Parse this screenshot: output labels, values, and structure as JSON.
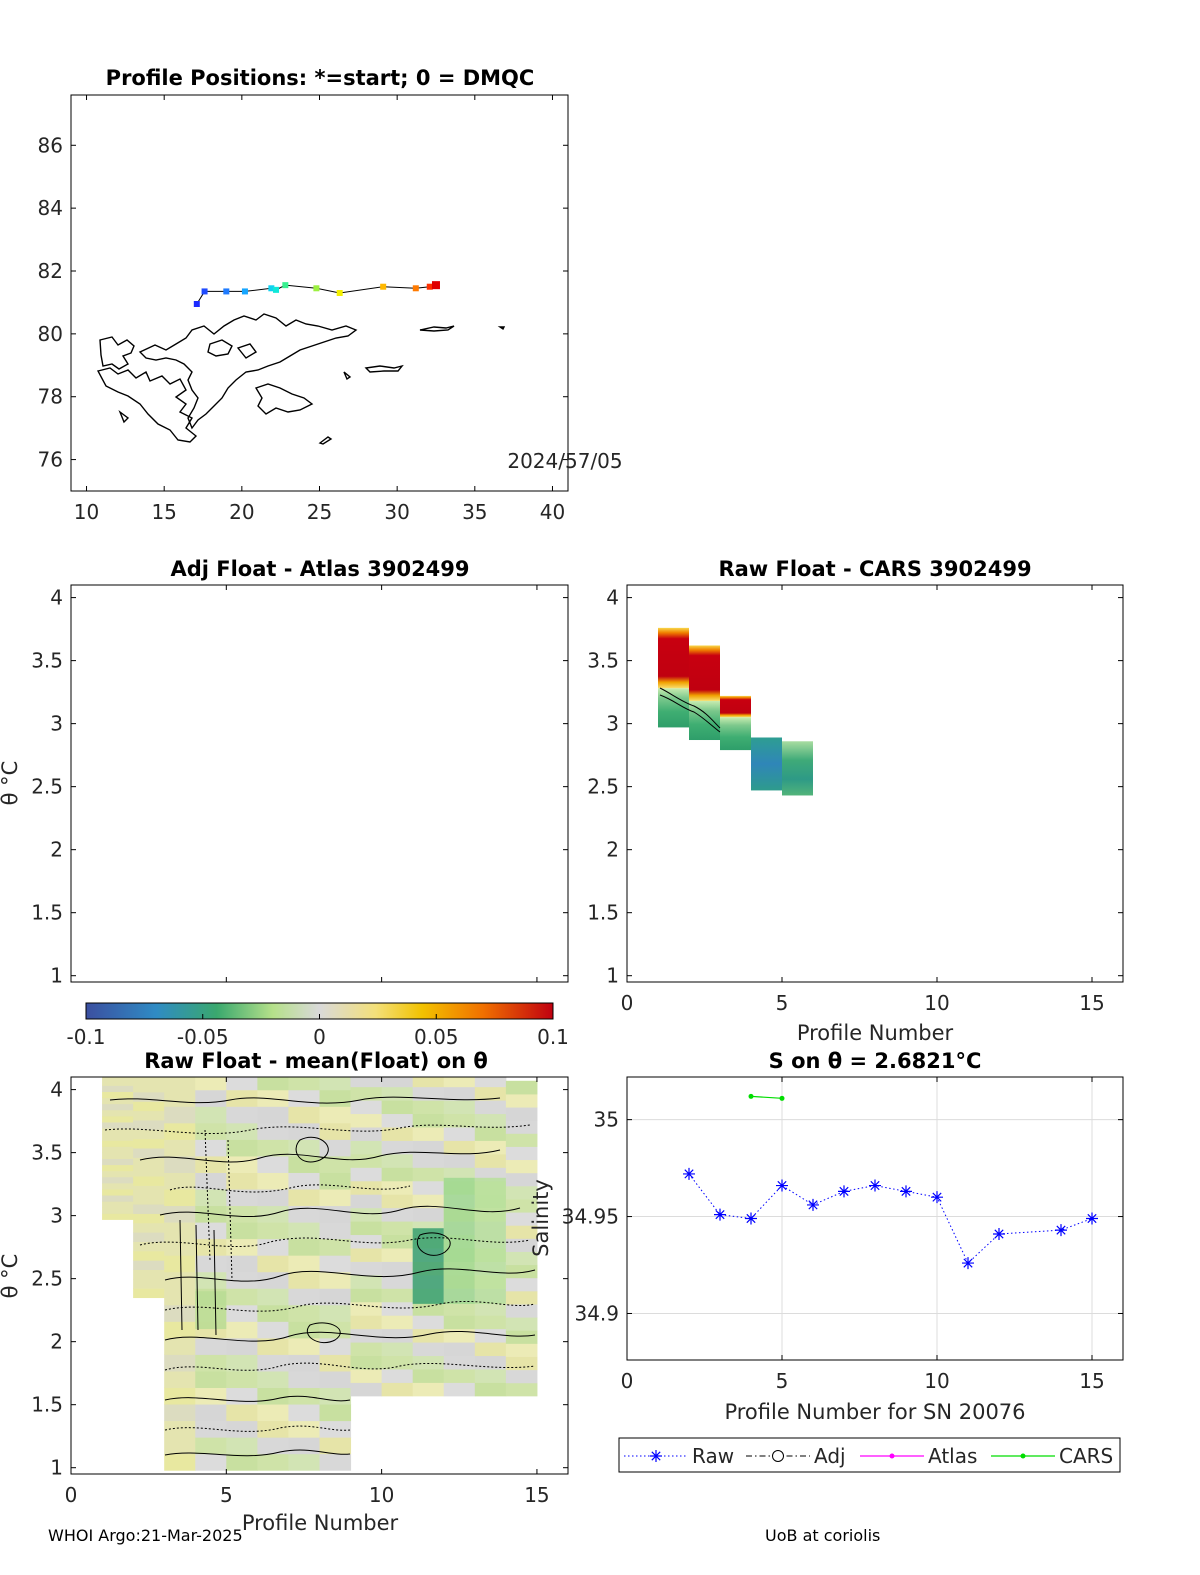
{
  "footer": {
    "left": "WHOI Argo:21-Mar-2025",
    "right": "UoB at coriolis"
  },
  "chart_data": [
    {
      "id": "map",
      "type": "scatter",
      "title": "Profile Positions: *=start; 0 = DMQC",
      "xlim": [
        9,
        41
      ],
      "ylim": [
        75,
        87.6
      ],
      "xticks": [
        10,
        15,
        20,
        25,
        30,
        35,
        40
      ],
      "yticks": [
        76,
        78,
        80,
        82,
        84,
        86
      ],
      "annotation": "2024/57/05",
      "points": [
        {
          "lon": 17.1,
          "lat": 80.95,
          "color": "#1c2bff"
        },
        {
          "lon": 17.6,
          "lat": 81.35,
          "color": "#1f4bff"
        },
        {
          "lon": 19.0,
          "lat": 81.35,
          "color": "#1f7bff"
        },
        {
          "lon": 20.2,
          "lat": 81.35,
          "color": "#16a6ff"
        },
        {
          "lon": 21.9,
          "lat": 81.45,
          "color": "#12d0f0"
        },
        {
          "lon": 22.2,
          "lat": 81.4,
          "color": "#10e8d8"
        },
        {
          "lon": 22.8,
          "lat": 81.55,
          "color": "#38f090"
        },
        {
          "lon": 24.8,
          "lat": 81.45,
          "color": "#9cf040"
        },
        {
          "lon": 26.3,
          "lat": 81.3,
          "color": "#f4f000"
        },
        {
          "lon": 29.1,
          "lat": 81.5,
          "color": "#ffb800"
        },
        {
          "lon": 31.2,
          "lat": 81.45,
          "color": "#ff7a00"
        },
        {
          "lon": 32.1,
          "lat": 81.5,
          "color": "#ff3000"
        },
        {
          "lon": 32.5,
          "lat": 81.55,
          "color": "#e00000"
        }
      ]
    },
    {
      "id": "adj-atlas",
      "type": "heatmap",
      "title": "Adj Float - Atlas  3902499",
      "xlim": [
        0,
        16
      ],
      "ylim": [
        0.95,
        4.1
      ],
      "yticks": [
        1,
        1.5,
        2,
        2.5,
        3,
        3.5,
        4
      ],
      "ylabel": "θ °C",
      "cells": []
    },
    {
      "id": "raw-cars",
      "type": "heatmap",
      "title": "Raw Float - CARS  3902499",
      "xlim": [
        0,
        16
      ],
      "ylim": [
        0.95,
        4.1
      ],
      "xticks": [
        0,
        5,
        10,
        15
      ],
      "yticks": [
        1,
        1.5,
        2,
        2.5,
        3,
        3.5,
        4
      ],
      "xlabel": "Profile Number",
      "columns": [
        {
          "profile": 1.5,
          "tmin": 2.97,
          "tmax": 3.76,
          "warm_top": 3.55,
          "warm_bot": 3.28
        },
        {
          "profile": 2.5,
          "tmin": 2.87,
          "tmax": 3.62,
          "warm_top": 3.5,
          "warm_bot": 3.18
        },
        {
          "profile": 3.5,
          "tmin": 2.79,
          "tmax": 3.22,
          "warm_top": 3.2,
          "warm_bot": 3.05
        },
        {
          "profile": 4.5,
          "tmin": 2.47,
          "tmax": 2.89
        },
        {
          "profile": 5.5,
          "tmin": 2.43,
          "tmax": 2.86
        }
      ]
    },
    {
      "id": "colorbar",
      "type": "heatmap",
      "clim": [
        -0.1,
        0.1
      ],
      "ticks": [
        "-0.1",
        "-0.05",
        "0",
        "0.05",
        "0.1"
      ]
    },
    {
      "id": "raw-mean",
      "type": "heatmap",
      "title": "Raw Float - mean(Float) on θ",
      "xlim": [
        0,
        16
      ],
      "ylim": [
        0.95,
        4.1
      ],
      "xticks": [
        0,
        5,
        10,
        15
      ],
      "yticks": [
        1,
        1.5,
        2,
        2.5,
        3,
        3.5,
        4
      ],
      "xlabel": "Profile Number",
      "ylabel": "θ °C",
      "columns": [
        {
          "profile": 1.5,
          "tmin": 2.97,
          "tmax": 4.13
        },
        {
          "profile": 2.5,
          "tmin": 2.35,
          "tmax": 4.13
        },
        {
          "profile": 3.5,
          "tmin": 0.98,
          "tmax": 4.13
        },
        {
          "profile": 4.5,
          "tmin": 0.98,
          "tmax": 4.13
        },
        {
          "profile": 5.5,
          "tmin": 0.98,
          "tmax": 4.13
        },
        {
          "profile": 6.5,
          "tmin": 0.98,
          "tmax": 4.13
        },
        {
          "profile": 7.5,
          "tmin": 0.98,
          "tmax": 4.13
        },
        {
          "profile": 8.5,
          "tmin": 0.98,
          "tmax": 4.13
        },
        {
          "profile": 9.5,
          "tmin": 1.57,
          "tmax": 4.13
        },
        {
          "profile": 10.5,
          "tmin": 1.57,
          "tmax": 4.13
        },
        {
          "profile": 11.5,
          "tmin": 1.57,
          "tmax": 4.13
        },
        {
          "profile": 12.5,
          "tmin": 1.57,
          "tmax": 4.13
        },
        {
          "profile": 13.5,
          "tmin": 1.57,
          "tmax": 4.13
        },
        {
          "profile": 14.5,
          "tmin": 1.57,
          "tmax": 4.07
        }
      ]
    },
    {
      "id": "salinity",
      "type": "line",
      "title": "S on θ = 2.6821°C",
      "xlim": [
        0,
        16
      ],
      "ylim": [
        34.876,
        35.022
      ],
      "xticks": [
        0,
        5,
        10,
        15
      ],
      "yticks": [
        34.9,
        34.95,
        35
      ],
      "xlabel": "Profile Number for SN 20076",
      "ylabel": "Salinity",
      "legend": "bottom",
      "series": [
        {
          "name": "Raw",
          "color": "#0000ff",
          "x": [
            2,
            3,
            4,
            5,
            6,
            7,
            8,
            9,
            10,
            11,
            12,
            14,
            15
          ],
          "y": [
            34.972,
            34.951,
            34.949,
            34.966,
            34.956,
            34.963,
            34.966,
            34.963,
            34.96,
            34.926,
            34.941,
            34.943,
            34.949
          ]
        },
        {
          "name": "Adj",
          "color": "#000000",
          "x": [],
          "y": []
        },
        {
          "name": "Atlas",
          "color": "#ff00ff",
          "x": [],
          "y": []
        },
        {
          "name": "CARS",
          "color": "#00dd00",
          "x": [
            4,
            5
          ],
          "y": [
            35.012,
            35.011
          ]
        }
      ]
    }
  ]
}
